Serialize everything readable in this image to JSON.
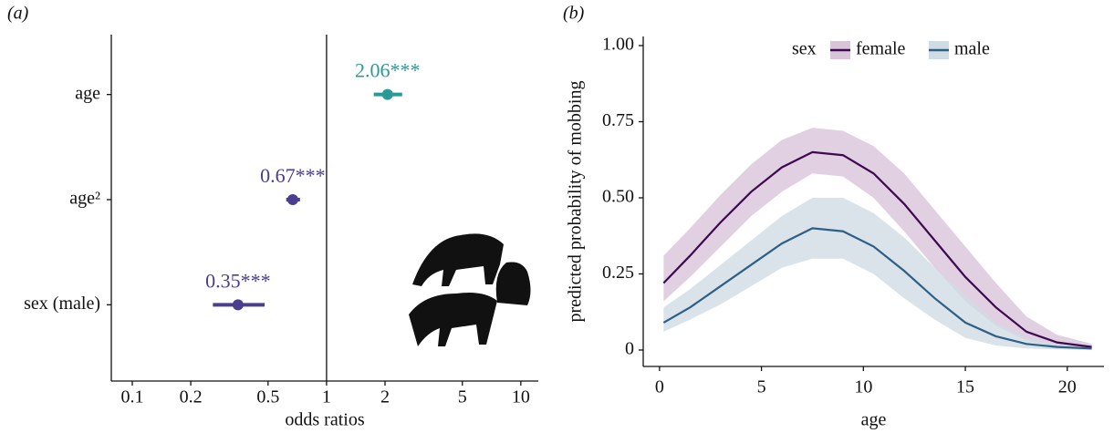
{
  "chart_data": [
    {
      "type": "forest",
      "panel_label": "(a)",
      "x_label": "odds ratios",
      "categories": [
        "age",
        "age²",
        "sex (male)"
      ],
      "values": [
        2.06,
        0.67,
        0.35
      ],
      "value_labels": [
        "2.06***",
        "0.67***",
        "0.35***"
      ],
      "lower": [
        1.75,
        0.62,
        0.26
      ],
      "upper": [
        2.45,
        0.73,
        0.48
      ],
      "colors": [
        "#2a9a96",
        "#4b3d8f",
        "#4b3d8f"
      ],
      "xscale": "log",
      "xlim": [
        0.078,
        12.3
      ],
      "xticks": [
        0.1,
        0.2,
        0.5,
        1,
        2,
        5,
        10
      ],
      "reference_line": 1
    },
    {
      "type": "line",
      "panel_label": "(b)",
      "x_label": "age",
      "y_label": "predicted probability of mobbing",
      "legend_title": "sex",
      "legend_position": "top",
      "x": [
        0.2,
        1.5,
        3,
        4.5,
        6,
        7.5,
        9,
        10.5,
        12,
        13.5,
        15,
        16.5,
        18,
        19.5,
        21.2
      ],
      "series": [
        {
          "name": "female",
          "color": "#3d0a4f",
          "band_color": "#d9c4da",
          "values": [
            0.22,
            0.31,
            0.42,
            0.52,
            0.6,
            0.65,
            0.64,
            0.58,
            0.48,
            0.36,
            0.24,
            0.14,
            0.06,
            0.025,
            0.01
          ],
          "lower": [
            0.16,
            0.24,
            0.34,
            0.44,
            0.52,
            0.58,
            0.57,
            0.5,
            0.39,
            0.27,
            0.16,
            0.08,
            0.03,
            0.01,
            0.002
          ],
          "upper": [
            0.31,
            0.4,
            0.51,
            0.61,
            0.69,
            0.73,
            0.72,
            0.67,
            0.58,
            0.46,
            0.34,
            0.22,
            0.11,
            0.05,
            0.02
          ]
        },
        {
          "name": "male",
          "color": "#2e5f86",
          "band_color": "#cfdce4",
          "values": [
            0.09,
            0.14,
            0.21,
            0.28,
            0.35,
            0.4,
            0.39,
            0.34,
            0.26,
            0.17,
            0.09,
            0.045,
            0.02,
            0.01,
            0.005
          ],
          "lower": [
            0.06,
            0.1,
            0.15,
            0.21,
            0.27,
            0.3,
            0.3,
            0.25,
            0.17,
            0.1,
            0.04,
            0.015,
            0.005,
            0.002,
            0
          ],
          "upper": [
            0.14,
            0.2,
            0.28,
            0.36,
            0.44,
            0.5,
            0.5,
            0.45,
            0.37,
            0.27,
            0.18,
            0.09,
            0.04,
            0.02,
            0.01
          ]
        }
      ],
      "xlim": [
        -0.8,
        21.8
      ],
      "xticks": [
        0,
        5,
        10,
        15,
        20
      ],
      "ylim": [
        -0.054,
        1.03
      ],
      "yticks": [
        0,
        0.25,
        {
          "value": 0.5,
          "label": "0.50"
        },
        0.75,
        {
          "value": 1,
          "label": "1.00"
        }
      ]
    }
  ]
}
